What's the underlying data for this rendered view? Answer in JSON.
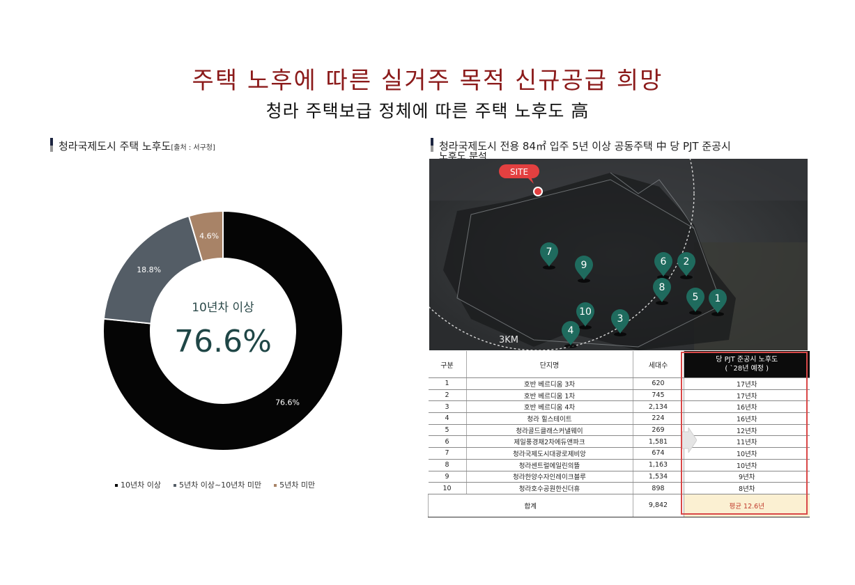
{
  "header": {
    "title": "주택 노후에 따른 실거주 목적 신규공급 희망",
    "subtitle": "청라 주택보급 정체에 따른 주택 노후도 高"
  },
  "left_section": {
    "title": "청라국제도시 주택 노후도",
    "source": "[출처 : 서구청]"
  },
  "right_section": {
    "title": "청라국제도시 전용 84㎡ 입주 5년 이상 공동주택 中 당 PJT 준공시",
    "title_cut": "노후도 분석"
  },
  "chart_data": {
    "type": "pie",
    "categories": [
      "10년차 이상",
      "5년차 이상~10년차 미만",
      "5년차 미만"
    ],
    "values": [
      76.6,
      18.8,
      4.6
    ],
    "value_labels": [
      "76.6%",
      "18.8%",
      "4.6%"
    ],
    "center_label": "10년차 이상",
    "center_value": "76.6%",
    "colors": [
      "#050505",
      "#545d66",
      "#a88367"
    ],
    "legend_position": "bottom"
  },
  "map": {
    "site_label": "SITE",
    "radius_label": "3KM",
    "markers": [
      "1",
      "2",
      "3",
      "4",
      "5",
      "6",
      "7",
      "8",
      "9",
      "10"
    ]
  },
  "table": {
    "headers": [
      "구분",
      "단지명",
      "세대수",
      "당 PJT 준공시 노후도",
      "( `28년 예정 )"
    ],
    "rows": [
      [
        "1",
        "호반 베르디움 3차",
        "620",
        "17년차"
      ],
      [
        "2",
        "호반 베르디움 1차",
        "745",
        "17년차"
      ],
      [
        "3",
        "호반 베르디움 4차",
        "2,134",
        "16년차"
      ],
      [
        "4",
        "청라 힐스테이트",
        "224",
        "16년차"
      ],
      [
        "5",
        "청라골드클래스커낼웨이",
        "269",
        "12년차"
      ],
      [
        "6",
        "제일풍경채2차에듀앤파크",
        "1,581",
        "11년차"
      ],
      [
        "7",
        "청라국제도시대광로제비앙",
        "674",
        "10년차"
      ],
      [
        "8",
        "청라센트럴에일린의뜰",
        "1,163",
        "10년차"
      ],
      [
        "9",
        "청라한양수자인레이크블루",
        "1,534",
        "9년차"
      ],
      [
        "10",
        "청라호수공원한신더휴",
        "898",
        "8년차"
      ]
    ],
    "total": [
      "합계",
      "9,842",
      "평균 12.6년"
    ]
  }
}
